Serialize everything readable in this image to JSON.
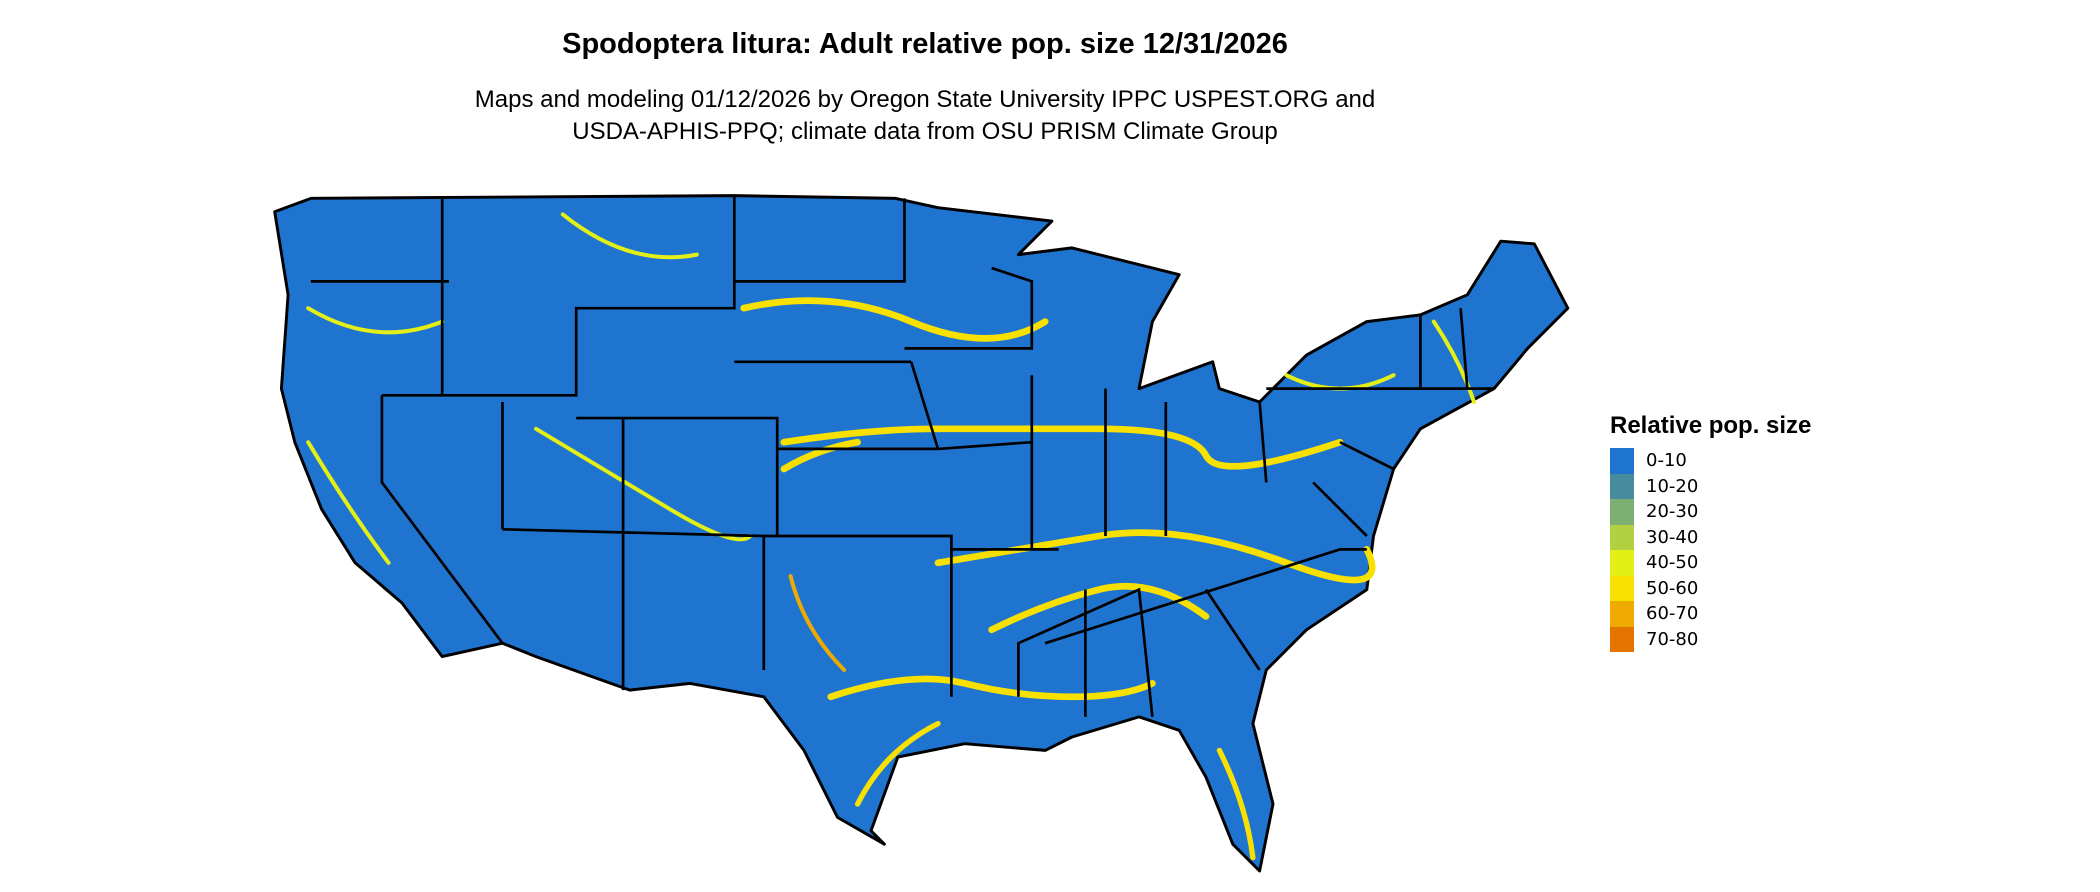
{
  "title": "Spodoptera litura: Adult relative pop. size 12/31/2026",
  "subtitle_lines": [
    "Maps and modeling 01/12/2026 by Oregon State University IPPC USPEST.ORG and",
    "USDA-APHIS-PPQ; climate data from OSU PRISM Climate Group"
  ],
  "legend": {
    "title": "Relative pop. size",
    "items": [
      {
        "label": "0-10",
        "color": "#1f74d0"
      },
      {
        "label": "10-20",
        "color": "#468c9c"
      },
      {
        "label": "20-30",
        "color": "#7daf73"
      },
      {
        "label": "30-40",
        "color": "#b3d043"
      },
      {
        "label": "40-50",
        "color": "#e3ef17"
      },
      {
        "label": "50-60",
        "color": "#f8e100"
      },
      {
        "label": "60-70",
        "color": "#eeaa00"
      },
      {
        "label": "70-80",
        "color": "#e47400"
      }
    ]
  },
  "map": {
    "region": "contiguous United States",
    "background_class_color": "#1f74d0",
    "state_border_color": "#000000"
  }
}
